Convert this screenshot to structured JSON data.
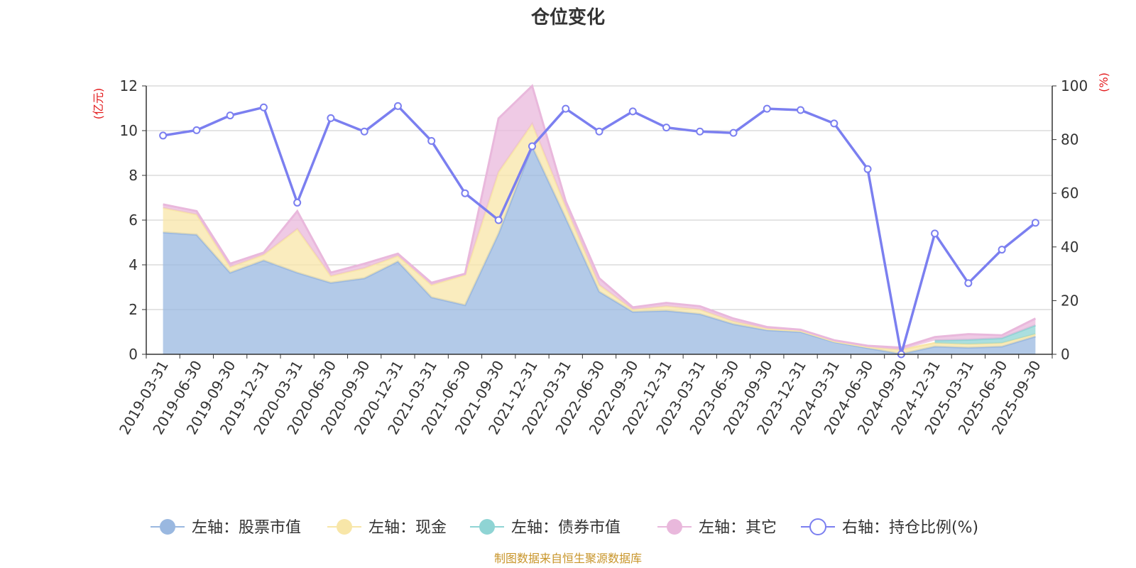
{
  "chart_data": {
    "type": "area",
    "title": "仓位变化",
    "source_text": "制图数据来自恒生聚源数据库",
    "left_axis": {
      "unit_label": "(亿元)",
      "min": 0,
      "max": 12,
      "ticks": [
        "0",
        "2",
        "4",
        "6",
        "8",
        "10",
        "12"
      ]
    },
    "right_axis": {
      "unit_label": "(%)",
      "min": 0,
      "max": 100,
      "ticks": [
        "0",
        "20",
        "40",
        "60",
        "80",
        "100"
      ]
    },
    "categories": [
      "2019-03-31",
      "2019-06-30",
      "2019-09-30",
      "2019-12-31",
      "2020-03-31",
      "2020-06-30",
      "2020-09-30",
      "2020-12-31",
      "2021-03-31",
      "2021-06-30",
      "2021-09-30",
      "2021-12-31",
      "2022-03-31",
      "2022-06-30",
      "2022-09-30",
      "2022-12-31",
      "2023-03-31",
      "2023-06-30",
      "2023-09-30",
      "2023-12-31",
      "2024-03-31",
      "2024-06-30",
      "2024-09-30",
      "2024-12-31",
      "2025-03-31",
      "2025-06-30",
      "2025-09-30"
    ],
    "series": [
      {
        "name": "左轴：股票市值",
        "axis": "left",
        "kind": "stacked-area",
        "color": "#9ab8e0",
        "values": [
          5.45,
          5.35,
          3.65,
          4.2,
          3.65,
          3.2,
          3.4,
          4.15,
          2.55,
          2.2,
          5.4,
          9.3,
          6.1,
          2.8,
          1.9,
          1.95,
          1.8,
          1.35,
          1.08,
          1.0,
          0.55,
          0.28,
          0.02,
          0.35,
          0.3,
          0.35,
          0.8
        ]
      },
      {
        "name": "左轴：现金",
        "axis": "left",
        "kind": "stacked-area",
        "color": "#f8e6a8",
        "values": [
          1.1,
          0.9,
          0.25,
          0.25,
          1.95,
          0.3,
          0.45,
          0.25,
          0.55,
          1.35,
          2.75,
          1.0,
          0.5,
          0.3,
          0.1,
          0.2,
          0.2,
          0.12,
          0.07,
          0.05,
          0.03,
          0.05,
          0.18,
          0.15,
          0.15,
          0.15,
          0.1
        ]
      },
      {
        "name": "左轴：债券市值",
        "axis": "left",
        "kind": "stacked-area",
        "color": "#8fd4d4",
        "values": [
          0,
          0,
          0,
          0,
          0,
          0,
          0,
          0,
          0,
          0,
          0,
          0,
          0,
          0,
          0,
          0,
          0,
          0,
          0,
          0,
          0,
          0,
          0,
          0.12,
          0.2,
          0.22,
          0.4
        ]
      },
      {
        "name": "左轴：其它",
        "axis": "left",
        "kind": "stacked-area",
        "color": "#e9b8dc",
        "values": [
          0.15,
          0.15,
          0.15,
          0.1,
          0.8,
          0.15,
          0.2,
          0.1,
          0.1,
          0.05,
          2.4,
          1.7,
          0.25,
          0.3,
          0.1,
          0.15,
          0.15,
          0.13,
          0.07,
          0.05,
          0.05,
          0.05,
          0.1,
          0.15,
          0.25,
          0.13,
          0.3
        ]
      },
      {
        "name": "右轴：持仓比例(%)",
        "axis": "right",
        "kind": "line",
        "color": "#7b7ff0",
        "values": [
          81.5,
          83.5,
          89,
          92,
          56.5,
          88,
          83,
          92.5,
          79.5,
          60,
          50,
          77.5,
          91.5,
          83,
          90.5,
          84.5,
          83,
          82.5,
          91.5,
          91,
          86,
          69,
          0,
          45,
          26.5,
          39,
          49
        ]
      }
    ],
    "legend": [
      {
        "label": "左轴：股票市值",
        "color": "#9ab8e0",
        "hollow": false
      },
      {
        "label": "左轴：现金",
        "color": "#f8e6a8",
        "hollow": false
      },
      {
        "label": "左轴：债券市值",
        "color": "#8fd4d4",
        "hollow": false
      },
      {
        "label": "左轴：其它",
        "color": "#e9b8dc",
        "hollow": false
      },
      {
        "label": "右轴：持仓比例(%)",
        "color": "#7b7ff0",
        "hollow": true
      }
    ]
  }
}
